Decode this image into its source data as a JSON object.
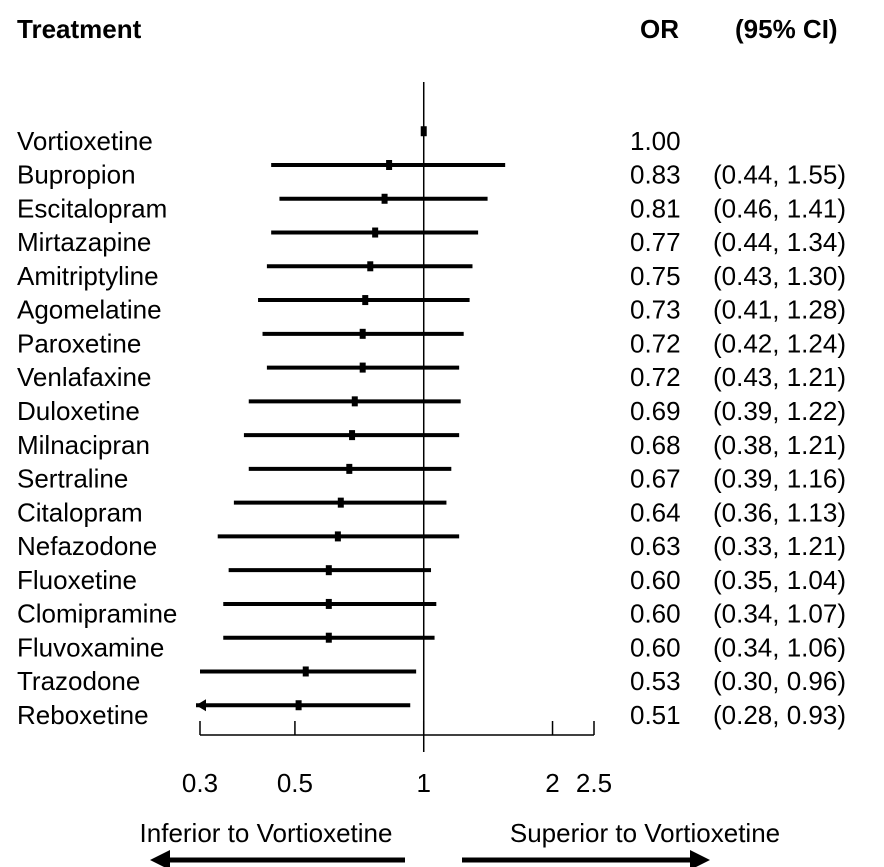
{
  "chart_data": {
    "type": "forest",
    "headers": [
      "Treatment",
      "OR",
      "(95% CI)"
    ],
    "categories": [
      "Vortioxetine",
      "Bupropion",
      "Escitalopram",
      "Mirtazapine",
      "Amitriptyline",
      "Agomelatine",
      "Paroxetine",
      "Venlafaxine",
      "Duloxetine",
      "Milnacipran",
      "Sertraline",
      "Citalopram",
      "Nefazodone",
      "Fluoxetine",
      "Clomipramine",
      "Fluvoxamine",
      "Trazodone",
      "Reboxetine"
    ],
    "values": [
      1.0,
      0.83,
      0.81,
      0.77,
      0.75,
      0.73,
      0.72,
      0.72,
      0.69,
      0.68,
      0.67,
      0.64,
      0.63,
      0.6,
      0.6,
      0.6,
      0.53,
      0.51
    ],
    "value_labels": [
      "1.00",
      "0.83",
      "0.81",
      "0.77",
      "0.75",
      "0.73",
      "0.72",
      "0.72",
      "0.69",
      "0.68",
      "0.67",
      "0.64",
      "0.63",
      "0.60",
      "0.60",
      "0.60",
      "0.53",
      "0.51"
    ],
    "lower": [
      null,
      0.44,
      0.46,
      0.44,
      0.43,
      0.41,
      0.42,
      0.43,
      0.39,
      0.38,
      0.39,
      0.36,
      0.33,
      0.35,
      0.34,
      0.34,
      0.3,
      0.28
    ],
    "upper": [
      null,
      1.55,
      1.41,
      1.34,
      1.3,
      1.28,
      1.24,
      1.21,
      1.22,
      1.21,
      1.16,
      1.13,
      1.21,
      1.04,
      1.07,
      1.06,
      0.96,
      0.93
    ],
    "ci_labels": [
      null,
      "(0.44, 1.55)",
      "(0.46, 1.41)",
      "(0.44, 1.34)",
      "(0.43, 1.30)",
      "(0.41, 1.28)",
      "(0.42, 1.24)",
      "(0.43, 1.21)",
      "(0.39, 1.22)",
      "(0.38, 1.21)",
      "(0.39, 1.16)",
      "(0.36, 1.13)",
      "(0.33, 1.21)",
      "(0.35, 1.04)",
      "(0.34, 1.07)",
      "(0.34, 1.06)",
      "(0.30, 0.96)",
      "(0.28, 0.93)"
    ],
    "xlim": [
      0.3,
      2.5
    ],
    "xticks": [
      0.3,
      0.5,
      1,
      2,
      2.5
    ],
    "xscale": "log",
    "reference": 1,
    "annotations": [
      "Inferior to Vortioxetine",
      "Superior to Vortioxetine"
    ],
    "color": "#000000"
  }
}
